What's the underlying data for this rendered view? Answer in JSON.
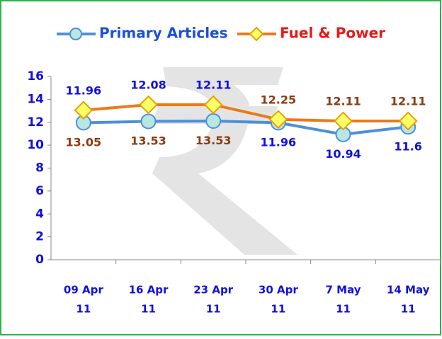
{
  "chart_data": {
    "type": "line",
    "categories": [
      [
        "09 Apr",
        "11"
      ],
      [
        "16 Apr",
        "11"
      ],
      [
        "23 Apr",
        "11"
      ],
      [
        "30 Apr",
        "11"
      ],
      [
        "7 May",
        "11"
      ],
      [
        "14 May",
        "11"
      ]
    ],
    "series": [
      {
        "name": "Primary Articles",
        "color": "#4f8fd6",
        "values": [
          11.96,
          12.08,
          12.11,
          11.96,
          10.94,
          11.6
        ]
      },
      {
        "name": "Fuel & Power",
        "color": "#ea7a1c",
        "values": [
          13.05,
          13.53,
          13.53,
          12.25,
          12.11,
          12.11
        ]
      }
    ],
    "ylim": [
      0,
      16
    ],
    "yticks": [
      0,
      2,
      4,
      6,
      8,
      10,
      12,
      14,
      16
    ]
  }
}
